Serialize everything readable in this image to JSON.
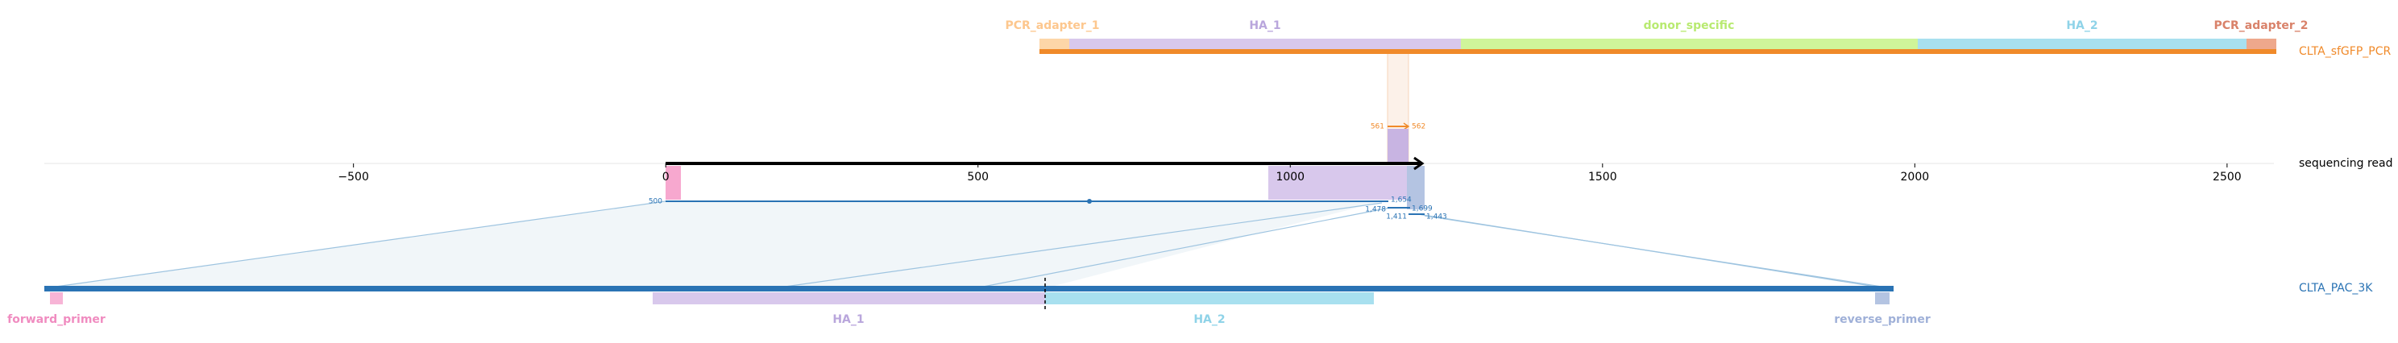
{
  "reference_top": {
    "name": "CLTA_sfGFP_PCR",
    "features": [
      "PCR_adapter_1",
      "HA_1",
      "donor_specific",
      "HA_2",
      "PCR_adapter_2"
    ]
  },
  "read": {
    "name": "sequencing read",
    "labels": [
      "500",
      "561",
      "562",
      "1,654",
      "1,478",
      "1,699",
      "1,411",
      "1,443"
    ]
  },
  "reference_bottom": {
    "name": "CLTA_PAC_3K",
    "features": [
      "forward_primer",
      "HA_1",
      "HA_2",
      "reverse_primer"
    ]
  },
  "axis": {
    "xlim": [
      -995,
      2575
    ],
    "xticks": [
      {
        "value": -500,
        "label": "−500"
      },
      0,
      500,
      1000,
      1500,
      2000,
      2500
    ]
  }
}
